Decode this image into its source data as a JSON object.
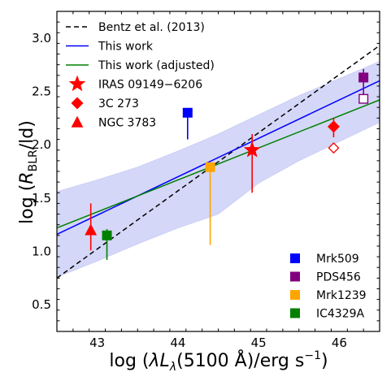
{
  "chart_data": {
    "type": "scatter",
    "xlabel": "log (λLλ(5100 Å)/erg s⁻¹)",
    "ylabel": "log (R_BLR/ld)",
    "xlim": [
      42.5,
      46.5
    ],
    "ylim": [
      0.25,
      3.25
    ],
    "x_ticks": [
      43,
      44,
      45,
      46
    ],
    "y_ticks": [
      0.5,
      1.0,
      1.5,
      2.0,
      2.5,
      3.0
    ],
    "x_tick_labels": [
      "43",
      "44",
      "45",
      "46"
    ],
    "y_tick_labels": [
      "0.5",
      "1.0",
      "1.5",
      "2.0",
      "2.5",
      "3.0"
    ],
    "grid": false,
    "lines": [
      {
        "name": "Bentz et al. (2013)",
        "color": "#000000",
        "dash": "dashed",
        "x": [
          42.5,
          46.5
        ],
        "y": [
          0.75,
          2.93
        ]
      },
      {
        "name": "This work",
        "color": "#0000ff",
        "dash": "solid",
        "x": [
          42.5,
          46.5
        ],
        "y": [
          1.16,
          2.6
        ]
      },
      {
        "name": "This work (adjusted)",
        "color": "#008000",
        "dash": "solid",
        "x": [
          42.5,
          46.5
        ],
        "y": [
          1.22,
          2.42
        ]
      }
    ],
    "band": {
      "color": "#aab0f0",
      "x": [
        42.5,
        43.0,
        43.5,
        44.0,
        44.5,
        45.0,
        45.5,
        46.0,
        46.5
      ],
      "upper": [
        1.56,
        1.67,
        1.79,
        1.94,
        2.1,
        2.28,
        2.46,
        2.62,
        2.78
      ],
      "lower": [
        0.76,
        0.91,
        1.07,
        1.22,
        1.35,
        1.64,
        1.85,
        2.03,
        2.21
      ]
    },
    "points": [
      {
        "name": "NGC 3783",
        "marker": "triangle",
        "color": "#ff0000",
        "x": 42.92,
        "y": 1.2,
        "err_low": 0.19,
        "err_high": 0.25,
        "err_color": "#ff0000"
      },
      {
        "name": "IC4329A",
        "marker": "square",
        "color": "#008000",
        "x": 43.12,
        "y": 1.15,
        "err_low": 0.23,
        "err_high": 0.06,
        "err_color": "#008000"
      },
      {
        "name": "Mrk509",
        "marker": "square",
        "color": "#0000ff",
        "x": 44.12,
        "y": 2.3,
        "err_low": 0.25,
        "err_high": 0.0,
        "err_color": "#0000ff"
      },
      {
        "name": "Mrk1239",
        "marker": "square",
        "color": "#ffa500",
        "x": 44.4,
        "y": 1.79,
        "err_low": 0.73,
        "err_high": 0.0,
        "err_color": "#ffa500"
      },
      {
        "name": "IRAS 09149−6206",
        "marker": "star",
        "color": "#ff0000",
        "x": 44.92,
        "y": 1.95,
        "err_low": 0.4,
        "err_high": 0.15,
        "err_color": "#ff0000"
      },
      {
        "name": "3C 273",
        "marker": "diamond",
        "color": "#ff0000",
        "x": 45.93,
        "y": 2.17,
        "err_low": 0.1,
        "err_high": 0.08,
        "err_color": "#ff0000"
      },
      {
        "name": "3C 273 (open)",
        "marker": "diamond-open",
        "color": "#ff0000",
        "x": 45.93,
        "y": 1.97,
        "err_low": 0.0,
        "err_high": 0.0,
        "err_color": "#ff0000"
      },
      {
        "name": "PDS456",
        "marker": "square",
        "color": "#800080",
        "x": 46.3,
        "y": 2.63,
        "err_low": 0.2,
        "err_high": 0.08,
        "err_color": "#800080"
      },
      {
        "name": "PDS456 (open)",
        "marker": "square-open",
        "color": "#800080",
        "x": 46.3,
        "y": 2.43,
        "err_low": 0.0,
        "err_high": 0.0,
        "err_color": "#800080"
      }
    ],
    "legend_top_left": [
      {
        "label": "Bentz et al. (2013)",
        "kind": "dashed-line",
        "color": "#000000"
      },
      {
        "label": "This work",
        "kind": "line",
        "color": "#0000ff"
      },
      {
        "label": "This work (adjusted)",
        "kind": "line",
        "color": "#008000"
      },
      {
        "label": "IRAS 09149−6206",
        "kind": "star",
        "color": "#ff0000"
      },
      {
        "label": "3C 273",
        "kind": "diamond",
        "color": "#ff0000"
      },
      {
        "label": "NGC 3783",
        "kind": "triangle",
        "color": "#ff0000"
      }
    ],
    "legend_bottom_right": [
      {
        "label": "Mrk509",
        "kind": "square",
        "color": "#0000ff"
      },
      {
        "label": "PDS456",
        "kind": "square",
        "color": "#800080"
      },
      {
        "label": "Mrk1239",
        "kind": "square",
        "color": "#ffa500"
      },
      {
        "label": "IC4329A",
        "kind": "square",
        "color": "#008000"
      }
    ]
  }
}
